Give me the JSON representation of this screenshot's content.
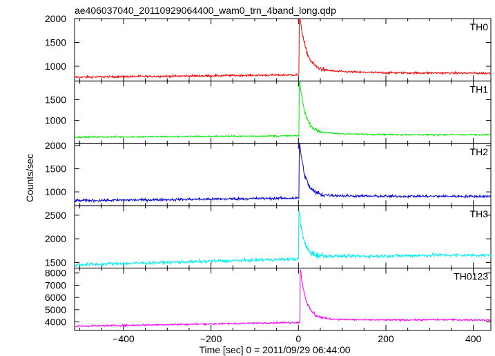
{
  "chart_data": {
    "type": "line",
    "title": "ae406037040_20110929064400_wam0_trn_4band_long.qdp",
    "xlabel": "Time [sec] 0 = 2011/09/29 06:44:00",
    "ylabel": "Counts/sec",
    "xlim": [
      -512,
      440
    ],
    "x_ticks": [
      -400,
      -200,
      0,
      200,
      400
    ],
    "x_tick_labels": [
      "−400",
      "−200",
      "0",
      "200",
      "400"
    ],
    "grid": false,
    "panels": [
      {
        "name": "TH0",
        "color": "#ff0000",
        "ylim": [
          690,
          2000
        ],
        "y_ticks": [
          1000,
          1500,
          2000
        ],
        "y_tick_labels": [
          "1000",
          "1500",
          "2000"
        ],
        "baseline_start": 770,
        "baseline_end": 850,
        "noise": 22,
        "peak_time": 3,
        "peak": 2000,
        "decay": 14,
        "tail": 130
      },
      {
        "name": "TH1",
        "color": "#00ee00",
        "ylim": [
          450,
          1950
        ],
        "y_ticks": [
          1000,
          1500
        ],
        "y_tick_labels": [
          "1000",
          "1500"
        ],
        "baseline_start": 600,
        "baseline_end": 650,
        "noise": 18,
        "peak_time": 3,
        "peak": 1850,
        "decay": 13,
        "tail": 100
      },
      {
        "name": "TH2",
        "color": "#0000dd",
        "ylim": [
          700,
          2050
        ],
        "y_ticks": [
          1000,
          1500,
          2000
        ],
        "y_tick_labels": [
          "1000",
          "1500",
          "2000"
        ],
        "baseline_start": 810,
        "baseline_end": 900,
        "noise": 28,
        "peak_time": 3,
        "peak": 2000,
        "decay": 12,
        "tail": 90
      },
      {
        "name": "TH3",
        "color": "#00eeee",
        "ylim": [
          1380,
          2700
        ],
        "y_ticks": [
          1500,
          2000,
          2500
        ],
        "y_tick_labels": [
          "1500",
          "2000",
          "2500"
        ],
        "baseline_start": 1450,
        "baseline_end": 1650,
        "noise": 35,
        "peak_time": 2,
        "peak": 2550,
        "decay": 10,
        "tail": 80
      },
      {
        "name": "TH0123",
        "color": "#ff00ff",
        "ylim": [
          3300,
          8400
        ],
        "y_ticks": [
          4000,
          5000,
          6000,
          7000,
          8000
        ],
        "y_tick_labels": [
          "4000",
          "5000",
          "6000",
          "7000",
          "8000"
        ],
        "baseline_start": 3650,
        "baseline_end": 4150,
        "noise": 70,
        "peak_time": 5,
        "peak": 8000,
        "decay": 13,
        "tail": 400
      }
    ]
  }
}
